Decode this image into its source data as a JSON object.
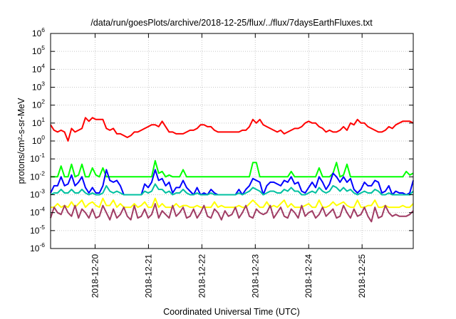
{
  "chart_data": {
    "type": "line",
    "title": "/data/run/goesPlots/archive/2018-12-25/flux/../flux/7daysEarthFluxes.txt",
    "xlabel": "Coordinated Universal Time (UTC)",
    "ylabel": "protons/cm²-s-sr-MeV",
    "scale_y": "log",
    "ylim_exponent": [
      -6,
      6
    ],
    "y_ticks": [
      {
        "base": "10",
        "exp": "-6"
      },
      {
        "base": "10",
        "exp": "-5"
      },
      {
        "base": "10",
        "exp": "-4"
      },
      {
        "base": "10",
        "exp": "-3"
      },
      {
        "base": "10",
        "exp": "-2"
      },
      {
        "base": "10",
        "exp": "-1"
      },
      {
        "base": "10",
        "exp": "0"
      },
      {
        "base": "10",
        "exp": "1"
      },
      {
        "base": "10",
        "exp": "2"
      },
      {
        "base": "10",
        "exp": "3"
      },
      {
        "base": "10",
        "exp": "4"
      },
      {
        "base": "10",
        "exp": "5"
      },
      {
        "base": "10",
        "exp": "6"
      }
    ],
    "x_range_days": [
      "2018-12-19T04:00",
      "2018-12-25T23:00"
    ],
    "x_tick_labels": [
      "2018-12-20",
      "2018-12-21",
      "2018-12-22",
      "2018-12-23",
      "2018-12-24",
      "2018-12-25"
    ],
    "grid": true,
    "series": [
      {
        "color": "#ff0000",
        "log10_values": [
          0.9,
          0.6,
          0.5,
          0.6,
          0.5,
          0.0,
          0.7,
          0.5,
          0.6,
          0.7,
          1.3,
          1.1,
          1.3,
          1.2,
          1.2,
          1.2,
          0.7,
          0.6,
          0.7,
          0.4,
          0.4,
          0.3,
          0.2,
          0.3,
          0.5,
          0.5,
          0.6,
          0.7,
          0.8,
          0.9,
          0.9,
          0.8,
          1.1,
          0.8,
          0.5,
          0.5,
          0.4,
          0.4,
          0.4,
          0.5,
          0.6,
          0.6,
          0.7,
          0.9,
          0.9,
          0.8,
          0.8,
          0.6,
          0.5,
          0.5,
          0.5,
          0.5,
          0.5,
          0.5,
          0.5,
          0.6,
          0.6,
          0.8,
          1.2,
          1.0,
          1.2,
          0.9,
          0.8,
          0.7,
          0.6,
          0.5,
          0.6,
          0.4,
          0.5,
          0.6,
          0.7,
          0.7,
          0.8,
          1.0,
          1.1,
          1.0,
          1.0,
          0.8,
          0.7,
          0.5,
          0.6,
          0.5,
          0.5,
          0.6,
          0.8,
          0.6,
          1.0,
          0.9,
          1.2,
          1.0,
          1.0,
          0.8,
          0.7,
          0.6,
          0.5,
          0.5,
          0.6,
          0.8,
          0.7,
          0.9,
          1.0,
          1.1,
          1.1,
          1.1,
          1.0
        ]
      },
      {
        "color": "#00ff00",
        "log10_values": [
          -2.0,
          -2.0,
          -2.0,
          -1.4,
          -2.0,
          -2.0,
          -1.3,
          -2.0,
          -1.9,
          -1.3,
          -2.0,
          -2.0,
          -1.5,
          -1.9,
          -2.0,
          -1.5,
          -2.0,
          -2.0,
          -2.0,
          -2.0,
          -2.0,
          -2.0,
          -2.0,
          -2.0,
          -2.0,
          -2.0,
          -2.0,
          -2.0,
          -2.0,
          -2.0,
          -1.1,
          -1.8,
          -1.7,
          -2.0,
          -1.9,
          -2.0,
          -2.0,
          -2.0,
          -1.6,
          -2.0,
          -2.0,
          -2.0,
          -2.0,
          -2.0,
          -2.0,
          -2.0,
          -2.0,
          -2.0,
          -2.0,
          -2.0,
          -2.0,
          -2.0,
          -2.0,
          -2.0,
          -2.0,
          -2.0,
          -2.0,
          -2.0,
          -1.2,
          -1.2,
          -2.0,
          -2.0,
          -2.0,
          -2.0,
          -2.0,
          -2.0,
          -2.0,
          -2.0,
          -2.0,
          -1.7,
          -2.0,
          -2.0,
          -2.0,
          -2.0,
          -2.0,
          -2.0,
          -2.0,
          -1.5,
          -2.0,
          -2.0,
          -2.0,
          -1.8,
          -1.2,
          -2.0,
          -1.9,
          -1.3,
          -2.0,
          -2.0,
          -2.0,
          -2.0,
          -2.0,
          -2.0,
          -2.0,
          -2.0,
          -2.0,
          -2.0,
          -2.0,
          -2.0,
          -2.0,
          -2.0,
          -2.0,
          -2.0,
          -1.7,
          -1.9,
          -1.8
        ]
      },
      {
        "color": "#0000ff",
        "log10_values": [
          -2.9,
          -2.5,
          -2.5,
          -2.0,
          -2.5,
          -2.4,
          -1.9,
          -2.5,
          -2.3,
          -2.0,
          -2.6,
          -2.9,
          -2.6,
          -2.9,
          -2.9,
          -2.5,
          -1.6,
          -2.2,
          -2.3,
          -2.2,
          -2.5,
          -3.0,
          -3.0,
          -3.0,
          -3.0,
          -3.0,
          -3.0,
          -2.4,
          -2.6,
          -2.3,
          -1.6,
          -2.2,
          -2.1,
          -2.5,
          -2.3,
          -2.9,
          -2.6,
          -2.6,
          -2.2,
          -2.6,
          -2.8,
          -3.0,
          -2.6,
          -3.0,
          -2.9,
          -3.0,
          -2.7,
          -2.9,
          -3.0,
          -3.0,
          -3.0,
          -3.0,
          -3.0,
          -3.0,
          -2.7,
          -3.0,
          -2.7,
          -2.5,
          -2.1,
          -2.2,
          -2.3,
          -3.0,
          -2.5,
          -2.3,
          -2.3,
          -2.4,
          -2.5,
          -2.2,
          -2.3,
          -2.0,
          -2.4,
          -2.3,
          -2.8,
          -2.9,
          -2.6,
          -2.3,
          -2.6,
          -2.0,
          -2.3,
          -2.7,
          -2.4,
          -1.8,
          -2.0,
          -2.3,
          -2.0,
          -2.3,
          -2.1,
          -2.7,
          -2.9,
          -2.7,
          -2.3,
          -2.5,
          -2.5,
          -2.2,
          -2.3,
          -2.9,
          -2.8,
          -2.5,
          -3.0,
          -2.8,
          -2.9,
          -2.9,
          -3.0,
          -2.9,
          -2.2
        ]
      },
      {
        "color": "#00c0a0",
        "log10_values": [
          -3.0,
          -2.9,
          -2.9,
          -2.7,
          -2.9,
          -2.9,
          -2.7,
          -2.9,
          -2.9,
          -2.7,
          -2.9,
          -3.0,
          -2.9,
          -3.0,
          -3.0,
          -2.9,
          -2.5,
          -2.8,
          -2.9,
          -2.8,
          -2.9,
          -3.0,
          -3.0,
          -3.0,
          -3.0,
          -3.0,
          -3.0,
          -2.8,
          -2.9,
          -2.8,
          -2.4,
          -2.7,
          -2.7,
          -2.9,
          -2.8,
          -3.0,
          -2.9,
          -2.9,
          -2.7,
          -2.9,
          -3.0,
          -3.0,
          -2.9,
          -3.0,
          -3.0,
          -3.0,
          -2.9,
          -3.0,
          -3.0,
          -3.0,
          -3.0,
          -3.0,
          -3.0,
          -3.0,
          -2.9,
          -3.0,
          -2.9,
          -2.8,
          -2.6,
          -2.7,
          -2.8,
          -3.0,
          -2.9,
          -2.8,
          -2.8,
          -2.9,
          -2.9,
          -2.7,
          -2.8,
          -2.6,
          -2.8,
          -2.8,
          -3.0,
          -3.0,
          -2.9,
          -2.8,
          -2.9,
          -2.6,
          -2.8,
          -2.9,
          -2.8,
          -2.5,
          -2.6,
          -2.8,
          -2.6,
          -2.8,
          -2.7,
          -2.9,
          -3.0,
          -2.9,
          -2.8,
          -2.9,
          -2.9,
          -2.7,
          -2.8,
          -3.0,
          -3.0,
          -2.9,
          -3.0,
          -3.0,
          -3.0,
          -3.0,
          -3.0,
          -3.0,
          -2.8
        ]
      },
      {
        "color": "#ffff00",
        "log10_values": [
          -3.7,
          -3.7,
          -3.5,
          -3.7,
          -3.6,
          -3.7,
          -3.4,
          -3.7,
          -3.5,
          -3.3,
          -3.7,
          -3.5,
          -3.4,
          -3.6,
          -3.7,
          -3.2,
          -3.6,
          -3.6,
          -3.3,
          -3.7,
          -3.5,
          -3.7,
          -3.7,
          -3.7,
          -3.5,
          -3.7,
          -3.6,
          -3.4,
          -3.7,
          -3.7,
          -3.2,
          -3.7,
          -3.5,
          -3.7,
          -3.7,
          -3.7,
          -3.5,
          -3.7,
          -3.6,
          -3.6,
          -3.7,
          -3.7,
          -3.6,
          -3.7,
          -3.7,
          -3.7,
          -3.7,
          -3.4,
          -3.7,
          -3.6,
          -3.7,
          -3.7,
          -3.7,
          -3.7,
          -3.6,
          -3.7,
          -3.7,
          -3.5,
          -3.3,
          -3.5,
          -3.7,
          -3.7,
          -3.4,
          -3.7,
          -3.6,
          -3.7,
          -3.5,
          -3.3,
          -3.7,
          -3.5,
          -3.7,
          -3.7,
          -3.7,
          -3.6,
          -3.5,
          -3.7,
          -3.7,
          -3.3,
          -3.7,
          -3.7,
          -3.6,
          -3.4,
          -3.6,
          -3.5,
          -3.4,
          -3.6,
          -3.7,
          -3.7,
          -3.3,
          -3.7,
          -3.7,
          -3.6,
          -3.6,
          -3.3,
          -3.7,
          -3.7,
          -3.6,
          -3.7,
          -3.7,
          -3.7,
          -3.7,
          -3.6,
          -3.7,
          -3.7,
          -3.5
        ]
      },
      {
        "color": "#a03c64",
        "log10_values": [
          -4.3,
          -3.7,
          -4.0,
          -4.1,
          -3.6,
          -4.0,
          -4.2,
          -3.6,
          -4.3,
          -3.8,
          -4.0,
          -4.3,
          -3.8,
          -4.3,
          -4.2,
          -3.6,
          -4.0,
          -4.4,
          -3.8,
          -4.3,
          -4.1,
          -3.7,
          -4.2,
          -4.4,
          -3.6,
          -4.3,
          -4.2,
          -3.8,
          -4.3,
          -4.1,
          -3.5,
          -4.3,
          -3.9,
          -4.1,
          -4.3,
          -3.6,
          -4.2,
          -4.0,
          -3.7,
          -4.3,
          -4.2,
          -3.8,
          -4.3,
          -4.0,
          -3.6,
          -4.2,
          -4.3,
          -3.8,
          -4.0,
          -4.4,
          -3.9,
          -4.2,
          -4.1,
          -3.7,
          -4.3,
          -4.0,
          -3.6,
          -4.2,
          -4.3,
          -3.8,
          -4.0,
          -4.1,
          -4.0,
          -3.6,
          -4.3,
          -4.0,
          -3.7,
          -4.2,
          -4.3,
          -3.8,
          -4.0,
          -4.3,
          -3.6,
          -4.2,
          -4.0,
          -3.9,
          -4.3,
          -4.1,
          -3.7,
          -4.2,
          -4.0,
          -3.8,
          -4.3,
          -4.2,
          -3.6,
          -4.0,
          -4.3,
          -3.8,
          -4.2,
          -4.1,
          -3.7,
          -4.2,
          -4.5,
          -3.7,
          -4.3,
          -4.2,
          -3.6,
          -4.0,
          -4.2,
          -4.1,
          -4.2,
          -4.2,
          -4.2,
          -4.1,
          -3.9
        ]
      }
    ]
  }
}
